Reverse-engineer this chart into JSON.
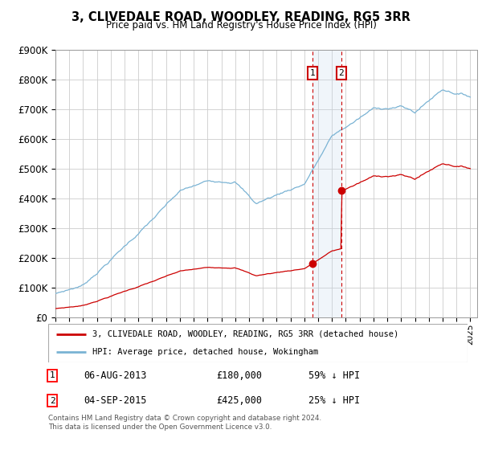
{
  "title": "3, CLIVEDALE ROAD, WOODLEY, READING, RG5 3RR",
  "subtitle": "Price paid vs. HM Land Registry's House Price Index (HPI)",
  "ylim": [
    0,
    900000
  ],
  "yticks": [
    0,
    100000,
    200000,
    300000,
    400000,
    500000,
    600000,
    700000,
    800000,
    900000
  ],
  "ytick_labels": [
    "£0",
    "£100K",
    "£200K",
    "£300K",
    "£400K",
    "£500K",
    "£600K",
    "£700K",
    "£800K",
    "£900K"
  ],
  "hpi_color": "#7ab3d4",
  "price_color": "#cc0000",
  "t1_x": 2013.59,
  "t1_y": 180000,
  "t2_x": 2015.67,
  "t2_y": 425000,
  "legend_property": "3, CLIVEDALE ROAD, WOODLEY, READING, RG5 3RR (detached house)",
  "legend_hpi": "HPI: Average price, detached house, Wokingham",
  "row1_num": "1",
  "row1_date": "06-AUG-2013",
  "row1_price": "£180,000",
  "row1_pct": "59% ↓ HPI",
  "row2_num": "2",
  "row2_date": "04-SEP-2015",
  "row2_price": "£425,000",
  "row2_pct": "25% ↓ HPI",
  "footer": "Contains HM Land Registry data © Crown copyright and database right 2024.\nThis data is licensed under the Open Government Licence v3.0.",
  "bg": "#ffffff",
  "grid_color": "#cccccc",
  "span_color": "#c6d9ec",
  "xmin": 1995,
  "xmax": 2025.5
}
